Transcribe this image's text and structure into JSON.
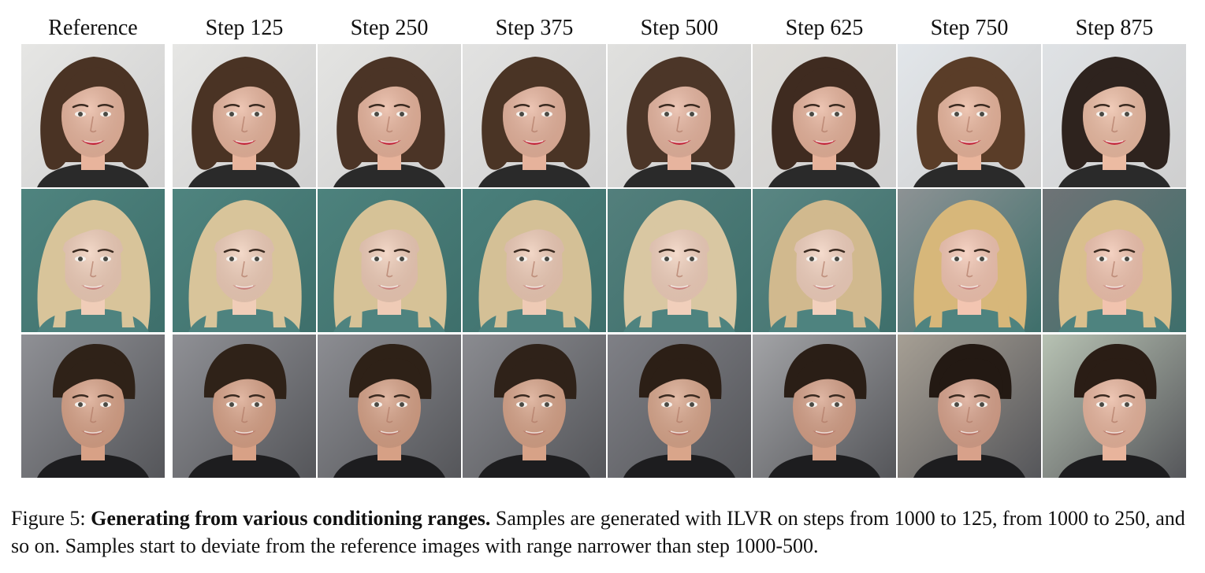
{
  "figure": {
    "columns": [
      "Reference",
      "Step 125",
      "Step 250",
      "Step 375",
      "Step 500",
      "Step 625",
      "Step 750",
      "Step 875"
    ],
    "rows": [
      {
        "bg": "#e8e8e6",
        "bg2": "#cfcfcf",
        "hair": "#4a3324",
        "skin": "#e9b49c",
        "lip": "#c2263a",
        "shirt": "#2a2a2a",
        "hair_style": "bob",
        "variants": [
          {
            "bg": "#e6e6e4",
            "hair": "#4a3324",
            "skin": "#e8b49c"
          },
          {
            "bg": "#e6e6e4",
            "hair": "#4a3324",
            "skin": "#e8b49c"
          },
          {
            "bg": "#e4e4e2",
            "hair": "#4b3426",
            "skin": "#e8b39b"
          },
          {
            "bg": "#e2e2e1",
            "hair": "#4a3425",
            "skin": "#e6b29b"
          },
          {
            "bg": "#e0e0de",
            "hair": "#4c3628",
            "skin": "#e7b49e"
          },
          {
            "bg": "#dedcd8",
            "hair": "#3f2b20",
            "skin": "#e7b29a"
          },
          {
            "bg": "#e2e6ea",
            "hair": "#5a3d28",
            "skin": "#eab59c"
          },
          {
            "bg": "#dfe2e5",
            "hair": "#2e231e",
            "skin": "#ecbba2"
          }
        ]
      },
      {
        "bg": "#4e837f",
        "bg2": "#3e6f6b",
        "hair": "#d8c49a",
        "skin": "#f0cdb8",
        "lip": "#c9837d",
        "shirt": "#4e837f",
        "hair_style": "long",
        "variants": [
          {
            "bg": "#4f847f",
            "hair": "#d8c49a",
            "skin": "#f0cdb8"
          },
          {
            "bg": "#4f847f",
            "hair": "#d8c49a",
            "skin": "#f0cdb8"
          },
          {
            "bg": "#4d827d",
            "hair": "#d6c297",
            "skin": "#efcbb6"
          },
          {
            "bg": "#4a7f7b",
            "hair": "#d4c096",
            "skin": "#eecab5"
          },
          {
            "bg": "#537f7c",
            "hair": "#d9c7a2",
            "skin": "#f1cfbb"
          },
          {
            "bg": "#5a8683",
            "hair": "#d1b98e",
            "skin": "#f2d0bd"
          },
          {
            "bg": "#8d9294",
            "hair": "#d7b77a",
            "skin": "#f3c5b1"
          },
          {
            "bg": "#6f7376",
            "hair": "#d9bf8d",
            "skin": "#f1c3ae"
          }
        ]
      },
      {
        "bg": "#8f9095",
        "bg2": "#55565a",
        "hair": "#2f2218",
        "skin": "#d8a186",
        "lip": "#b87466",
        "shirt": "#1d1d1f",
        "hair_style": "short",
        "variants": [
          {
            "bg": "#8f9095",
            "hair": "#2f2218",
            "skin": "#d8a186"
          },
          {
            "bg": "#8f9095",
            "hair": "#2f2218",
            "skin": "#d8a186"
          },
          {
            "bg": "#8c8d92",
            "hair": "#2e2117",
            "skin": "#d6a085"
          },
          {
            "bg": "#8a8b90",
            "hair": "#2f2219",
            "skin": "#d7a287"
          },
          {
            "bg": "#7f8086",
            "hair": "#2c1f16",
            "skin": "#d9a58a"
          },
          {
            "bg": "#a2a3a6",
            "hair": "#2a1e16",
            "skin": "#d59f86"
          },
          {
            "bg": "#a69f94",
            "hair": "#231913",
            "skin": "#d8a18a"
          },
          {
            "bg": "#b7c2b3",
            "hair": "#2a1d15",
            "skin": "#e8b49c"
          }
        ]
      }
    ]
  },
  "caption": {
    "label": "Figure 5: ",
    "bold": "Generating from various conditioning ranges.",
    "text": " Samples are generated with ILVR on steps from 1000 to 125, from 1000 to 250, and so on. Samples start to deviate from the reference images with range narrower than step 1000-500."
  }
}
